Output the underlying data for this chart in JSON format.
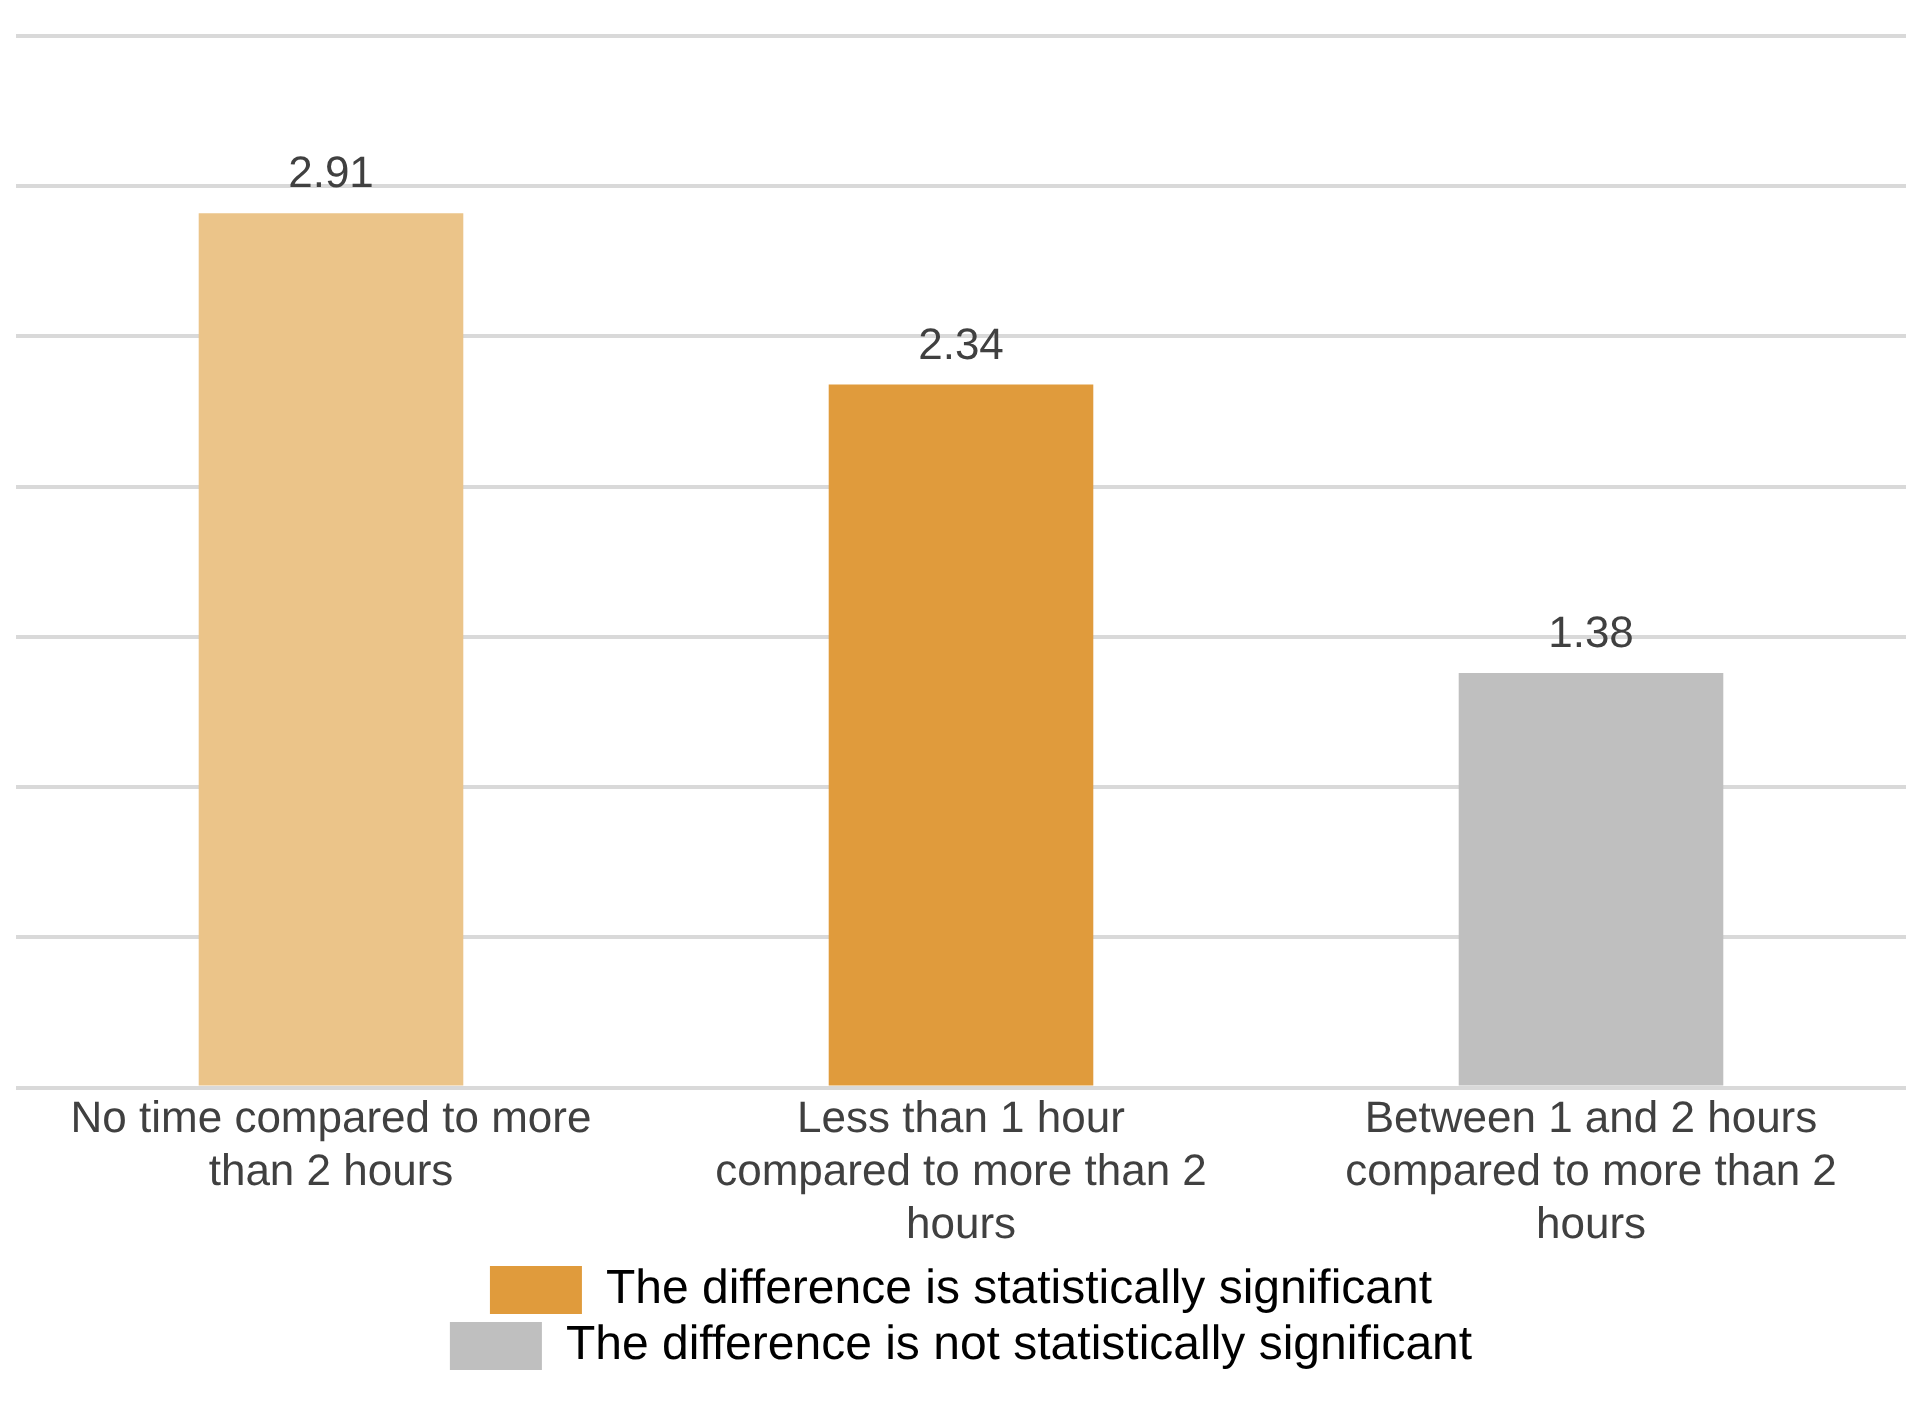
{
  "chart_data": {
    "type": "bar",
    "categories": [
      "No time compared to more than 2 hours",
      "Less than 1 hour compared to more than 2 hours",
      "Between 1 and 2 hours compared to more than 2 hours"
    ],
    "series": [
      {
        "color": "#ebc489",
        "values": [
          2.91,
          null,
          null
        ]
      },
      {
        "name": "The difference is statistically significant",
        "color": "#e09b3c",
        "values": [
          null,
          2.34,
          null
        ]
      },
      {
        "name": "The difference is not statistically significant",
        "color": "#bfbfbf",
        "values": [
          null,
          null,
          1.38
        ]
      }
    ],
    "ylim": [
      0,
      3.5
    ],
    "yticks": [
      {
        "value": 0,
        "label": null
      },
      {
        "value": 0.5,
        "label": null
      },
      {
        "value": 1,
        "label": null
      },
      {
        "value": 1.5,
        "label": null
      },
      {
        "value": 2,
        "label": null
      },
      {
        "value": 2.5,
        "label": null
      },
      {
        "value": 3,
        "label": null
      },
      {
        "value": 3.5,
        "label": null
      }
    ],
    "tick_labels": "x",
    "grid": "y",
    "legend": "bottom",
    "data_labels": true
  }
}
